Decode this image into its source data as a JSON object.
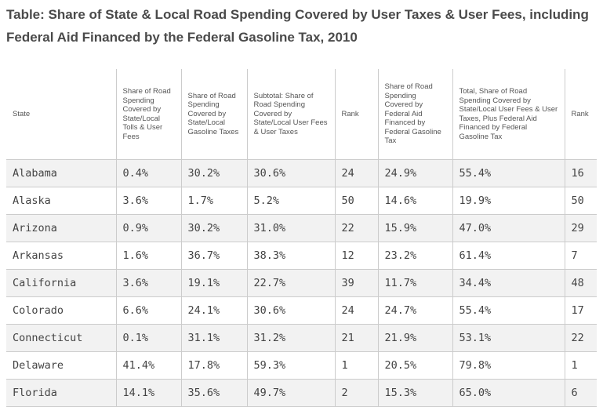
{
  "title": "Table: Share of State & Local Road Spending Covered by User Taxes & User Fees, including Federal Aid Financed by the Federal Gasoline Tax, 2010",
  "columns": [
    "State",
    "Share of Road Spending Covered by State/Local Tolls & User Fees",
    "Share of Road Spending Covered by State/Local Gasoline Taxes",
    "Subtotal: Share of Road Spending Covered by State/Local User Fees & User Taxes",
    "Rank",
    "Share of Road Spending Covered by Federal Aid Financed by Federal Gasoline Tax",
    "Total, Share of Road Spending Covered by State/Local User Fees & User Taxes, Plus Federal Aid Financed by Federal Gasoline Tax",
    "Rank"
  ],
  "rows": [
    [
      "Alabama",
      "0.4%",
      "30.2%",
      "30.6%",
      "24",
      "24.9%",
      "55.4%",
      "16"
    ],
    [
      "Alaska",
      "3.6%",
      "1.7%",
      "5.2%",
      "50",
      "14.6%",
      "19.9%",
      "50"
    ],
    [
      "Arizona",
      "0.9%",
      "30.2%",
      "31.0%",
      "22",
      "15.9%",
      "47.0%",
      "29"
    ],
    [
      "Arkansas",
      "1.6%",
      "36.7%",
      "38.3%",
      "12",
      "23.2%",
      "61.4%",
      "7"
    ],
    [
      "California",
      "3.6%",
      "19.1%",
      "22.7%",
      "39",
      "11.7%",
      "34.4%",
      "48"
    ],
    [
      "Colorado",
      "6.6%",
      "24.1%",
      "30.6%",
      "24",
      "24.7%",
      "55.4%",
      "17"
    ],
    [
      "Connecticut",
      "0.1%",
      "31.1%",
      "31.2%",
      "21",
      "21.9%",
      "53.1%",
      "22"
    ],
    [
      "Delaware",
      "41.4%",
      "17.8%",
      "59.3%",
      "1",
      "20.5%",
      "79.8%",
      "1"
    ],
    [
      "Florida",
      "14.1%",
      "35.6%",
      "49.7%",
      "2",
      "15.3%",
      "65.0%",
      "6"
    ]
  ]
}
